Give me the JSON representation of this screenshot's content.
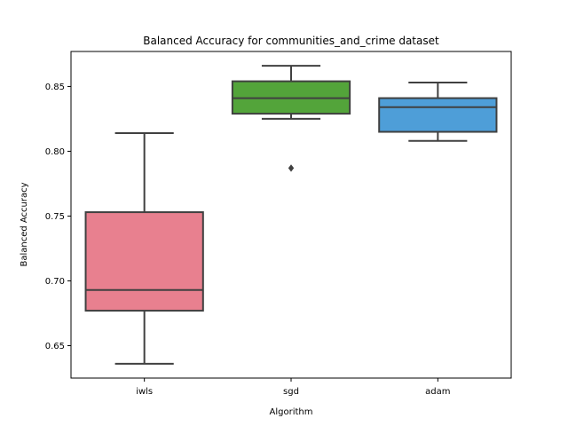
{
  "chart_data": {
    "type": "box",
    "title": "Balanced Accuracy for communities_and_crime dataset",
    "xlabel": "Algorithm",
    "ylabel": "Balanced Accuracy",
    "ylim": [
      0.625,
      0.877
    ],
    "yticks": [
      0.65,
      0.7,
      0.75,
      0.8,
      0.85
    ],
    "ytick_labels": [
      "0.65",
      "0.70",
      "0.75",
      "0.80",
      "0.85"
    ],
    "grid": false,
    "categories": [
      "iwls",
      "sgd",
      "adam"
    ],
    "boxes": [
      {
        "category": "iwls",
        "color": "#e8808f",
        "whisker_low": 0.636,
        "q1": 0.677,
        "median": 0.693,
        "q3": 0.753,
        "whisker_high": 0.814,
        "outliers": []
      },
      {
        "category": "sgd",
        "color": "#53a43a",
        "whisker_low": 0.825,
        "q1": 0.829,
        "median": 0.841,
        "q3": 0.854,
        "whisker_high": 0.866,
        "outliers": [
          0.787
        ]
      },
      {
        "category": "adam",
        "color": "#4e9ed8",
        "whisker_low": 0.808,
        "q1": 0.815,
        "median": 0.834,
        "q3": 0.841,
        "whisker_high": 0.853,
        "outliers": []
      }
    ],
    "line_color": "#404040"
  }
}
